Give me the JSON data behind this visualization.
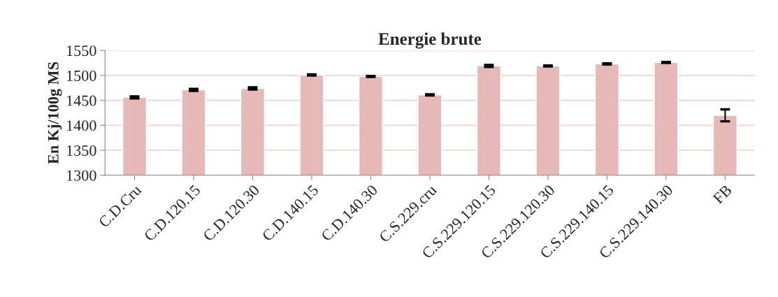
{
  "chart_data": {
    "type": "bar",
    "title": "Energie brute",
    "ylabel": "En Kj/100g MS",
    "categories": [
      "C.D.Cru",
      "C.D.120.15",
      "C.D.120.30",
      "C.D.140.15",
      "C.D.140.30",
      "C.S.229.cru",
      "C.S.229.120.15",
      "C.S.229.120.30",
      "C.S.229.140.15",
      "C.S.229.140.30",
      "FB"
    ],
    "values": [
      1456,
      1471,
      1474,
      1501,
      1498,
      1461,
      1519,
      1519,
      1523,
      1526,
      1420
    ],
    "errors": [
      2,
      2,
      2,
      1,
      1,
      1,
      2,
      1,
      1,
      1,
      12
    ],
    "color": "#e6b8b7",
    "ylim": [
      1300,
      1550
    ],
    "yticks": [
      1300,
      1350,
      1400,
      1450,
      1500,
      1550
    ],
    "grid": "y"
  }
}
